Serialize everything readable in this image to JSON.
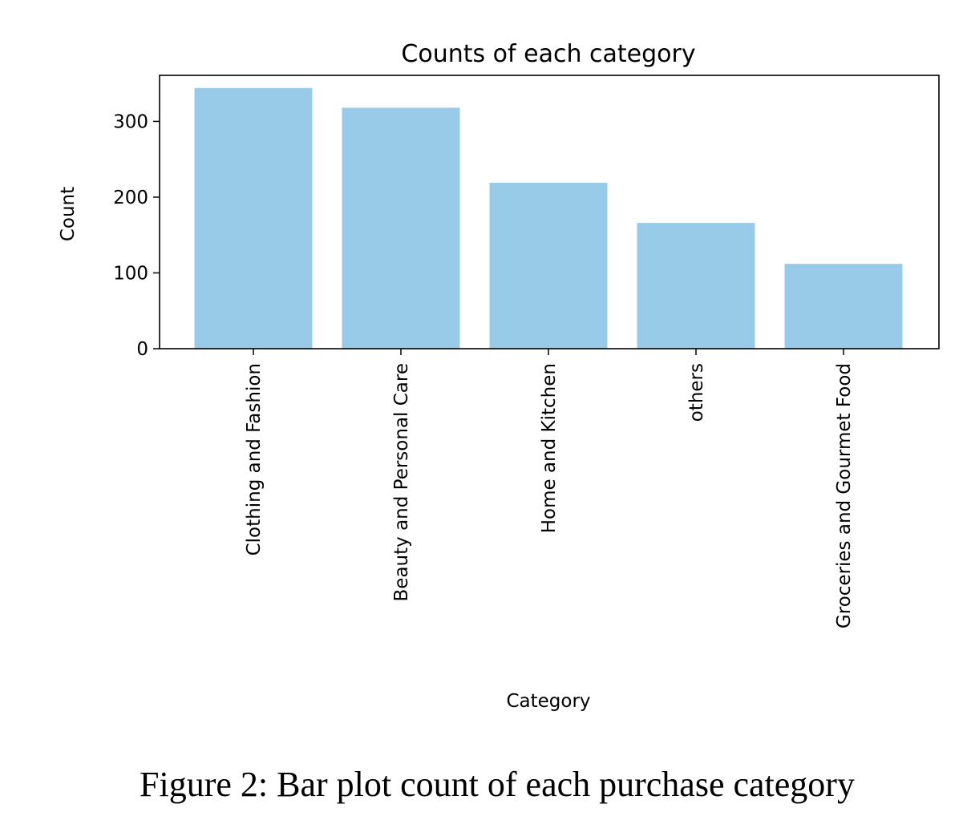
{
  "chart_data": {
    "type": "bar",
    "title": "Counts of each category",
    "xlabel": "Category",
    "ylabel": "Count",
    "categories": [
      "Clothing and Fashion",
      "Beauty and Personal Care",
      "Home and Kitchen",
      "others",
      "Groceries and Gourmet Food"
    ],
    "values": [
      344,
      318,
      219,
      166,
      112
    ],
    "ylim": [
      0,
      360
    ],
    "yticks": [
      0,
      100,
      200,
      300
    ],
    "ytick_labels": [
      "0",
      "100",
      "200",
      "300"
    ],
    "grid": false,
    "bar_color": "#98cbe8"
  },
  "caption": "Figure 2: Bar plot count of each purchase category"
}
